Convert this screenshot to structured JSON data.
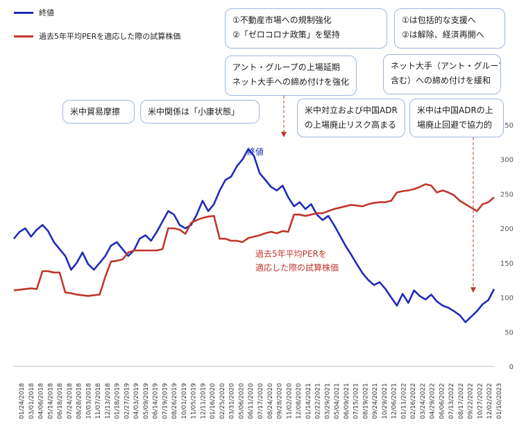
{
  "legend": {
    "close_label": "終値",
    "per_label": "過去5年平均PERを適応した際の試算株価",
    "close_color": "#1f2bb8",
    "per_color": "#c0362c"
  },
  "annotations": {
    "a1_line1": "①不動産市場への規制強化",
    "a1_line2": "②「ゼロコロナ政策」を堅持",
    "a2_line1": "①は包括的な支援へ",
    "a2_line2": "②は解除、経済再開へ",
    "a3_line1": "アント・グループの上場延期",
    "a3_line2": "ネット大手への締め付けを強化",
    "a4_line1": "ネット大手（アント・グループ",
    "a4_line2": "含む）への締め付けを緩和",
    "a5": "米中貿易摩擦",
    "a6": "米中関係は「小康状態」",
    "a7_line1": "米中対立および中国ADR",
    "a7_line2": "の上場廃止リスク高まる",
    "a8_line1": "米中は中国ADRの上",
    "a8_line2": "場廃止回避で協力的",
    "close_inline_label": "終値",
    "per_inline_line1": "過去5年平均PERを",
    "per_inline_line2": "適応した際の試算株価"
  },
  "chart_data": {
    "type": "line",
    "ylim": [
      0,
      350
    ],
    "yticks": [
      0,
      50,
      100,
      150,
      200,
      250,
      300,
      350
    ],
    "grid": false,
    "legend_position": "top-left",
    "x_tick_labels": [
      "01/24/2018",
      "03/01/2018",
      "04/06/2018",
      "05/14/2018",
      "06/18/2018",
      "07/24/2018",
      "08/28/2018",
      "10/03/2018",
      "11/07/2018",
      "12/13/2018",
      "01/18/2019",
      "02/27/2019",
      "04/03/2019",
      "05/09/2019",
      "06/14/2019",
      "07/19/2019",
      "08/26/2019",
      "10/01/2019",
      "11/05/2019",
      "12/11/2019",
      "01/16/2020",
      "02/25/2020",
      "03/31/2020",
      "05/06/2020",
      "06/11/2020",
      "07/17/2020",
      "08/24/2020",
      "09/28/2020",
      "11/02/2020",
      "12/08/2020",
      "01/14/2021",
      "02/22/2021",
      "03/29/2021",
      "05/04/2021",
      "06/09/2021",
      "07/15/2021",
      "08/19/2021",
      "09/24/2021",
      "10/29/2021",
      "12/06/2021",
      "01/11/2022",
      "02/16/2022",
      "03/24/2022",
      "04/29/2022",
      "06/06/2022",
      "07/13/2022",
      "08/17/2022",
      "09/22/2022",
      "10/27/2022",
      "12/02/2022",
      "01/10/2023"
    ],
    "series": [
      {
        "name": "終値",
        "color": "#1f2bb8",
        "points": [
          [
            0,
            185
          ],
          [
            1,
            195
          ],
          [
            2,
            200
          ],
          [
            3,
            188
          ],
          [
            4,
            198
          ],
          [
            5,
            205
          ],
          [
            6,
            196
          ],
          [
            7,
            180
          ],
          [
            8,
            170
          ],
          [
            9,
            160
          ],
          [
            10,
            140
          ],
          [
            11,
            150
          ],
          [
            12,
            165
          ],
          [
            13,
            148
          ],
          [
            14,
            140
          ],
          [
            15,
            150
          ],
          [
            16,
            160
          ],
          [
            17,
            175
          ],
          [
            18,
            180
          ],
          [
            19,
            170
          ],
          [
            20,
            160
          ],
          [
            21,
            168
          ],
          [
            22,
            185
          ],
          [
            23,
            190
          ],
          [
            24,
            182
          ],
          [
            25,
            195
          ],
          [
            26,
            210
          ],
          [
            27,
            225
          ],
          [
            28,
            220
          ],
          [
            29,
            205
          ],
          [
            30,
            200
          ],
          [
            31,
            205
          ],
          [
            32,
            220
          ],
          [
            33,
            240
          ],
          [
            34,
            225
          ],
          [
            35,
            235
          ],
          [
            36,
            255
          ],
          [
            37,
            270
          ],
          [
            38,
            275
          ],
          [
            39,
            290
          ],
          [
            40,
            300
          ],
          [
            41,
            315
          ],
          [
            42,
            305
          ],
          [
            43,
            280
          ],
          [
            44,
            270
          ],
          [
            45,
            260
          ],
          [
            46,
            255
          ],
          [
            47,
            262
          ],
          [
            48,
            245
          ],
          [
            49,
            232
          ],
          [
            50,
            238
          ],
          [
            51,
            228
          ],
          [
            52,
            235
          ],
          [
            53,
            220
          ],
          [
            54,
            212
          ],
          [
            55,
            218
          ],
          [
            56,
            205
          ],
          [
            57,
            190
          ],
          [
            58,
            175
          ],
          [
            59,
            162
          ],
          [
            60,
            148
          ],
          [
            61,
            135
          ],
          [
            62,
            125
          ],
          [
            63,
            118
          ],
          [
            64,
            122
          ],
          [
            65,
            112
          ],
          [
            66,
            100
          ],
          [
            67,
            88
          ],
          [
            68,
            105
          ],
          [
            69,
            92
          ],
          [
            70,
            110
          ],
          [
            71,
            102
          ],
          [
            72,
            97
          ],
          [
            73,
            104
          ],
          [
            74,
            94
          ],
          [
            75,
            88
          ],
          [
            76,
            85
          ],
          [
            77,
            80
          ],
          [
            78,
            74
          ],
          [
            79,
            64
          ],
          [
            80,
            72
          ],
          [
            81,
            80
          ],
          [
            82,
            90
          ],
          [
            83,
            96
          ],
          [
            84,
            112
          ]
        ]
      },
      {
        "name": "過去5年平均PERを適応した際の試算株価",
        "color": "#c0362c",
        "points": [
          [
            0,
            110
          ],
          [
            1,
            111
          ],
          [
            2,
            112
          ],
          [
            3,
            113
          ],
          [
            4,
            112
          ],
          [
            5,
            138
          ],
          [
            6,
            138
          ],
          [
            7,
            136
          ],
          [
            8,
            136
          ],
          [
            9,
            107
          ],
          [
            10,
            106
          ],
          [
            11,
            104
          ],
          [
            12,
            103
          ],
          [
            13,
            102
          ],
          [
            14,
            103
          ],
          [
            15,
            104
          ],
          [
            16,
            130
          ],
          [
            17,
            152
          ],
          [
            18,
            153
          ],
          [
            19,
            155
          ],
          [
            20,
            165
          ],
          [
            21,
            168
          ],
          [
            22,
            168
          ],
          [
            23,
            168
          ],
          [
            24,
            168
          ],
          [
            25,
            168
          ],
          [
            26,
            170
          ],
          [
            27,
            200
          ],
          [
            28,
            200
          ],
          [
            29,
            198
          ],
          [
            30,
            192
          ],
          [
            31,
            208
          ],
          [
            32,
            212
          ],
          [
            33,
            215
          ],
          [
            34,
            217
          ],
          [
            35,
            218
          ],
          [
            36,
            185
          ],
          [
            37,
            185
          ],
          [
            38,
            182
          ],
          [
            39,
            182
          ],
          [
            40,
            180
          ],
          [
            41,
            186
          ],
          [
            42,
            188
          ],
          [
            43,
            190
          ],
          [
            44,
            193
          ],
          [
            45,
            195
          ],
          [
            46,
            193
          ],
          [
            47,
            196
          ],
          [
            48,
            195
          ],
          [
            49,
            220
          ],
          [
            50,
            220
          ],
          [
            51,
            218
          ],
          [
            52,
            220
          ],
          [
            53,
            222
          ],
          [
            54,
            222
          ],
          [
            55,
            225
          ],
          [
            56,
            228
          ],
          [
            57,
            230
          ],
          [
            58,
            232
          ],
          [
            59,
            234
          ],
          [
            60,
            233
          ],
          [
            61,
            232
          ],
          [
            62,
            235
          ],
          [
            63,
            237
          ],
          [
            64,
            238
          ],
          [
            65,
            238
          ],
          [
            66,
            240
          ],
          [
            67,
            252
          ],
          [
            68,
            254
          ],
          [
            69,
            255
          ],
          [
            70,
            257
          ],
          [
            71,
            260
          ],
          [
            72,
            264
          ],
          [
            73,
            262
          ],
          [
            74,
            252
          ],
          [
            75,
            255
          ],
          [
            76,
            252
          ],
          [
            77,
            248
          ],
          [
            78,
            240
          ],
          [
            79,
            235
          ],
          [
            80,
            230
          ],
          [
            81,
            225
          ],
          [
            82,
            235
          ],
          [
            83,
            238
          ],
          [
            84,
            245
          ]
        ]
      }
    ]
  }
}
